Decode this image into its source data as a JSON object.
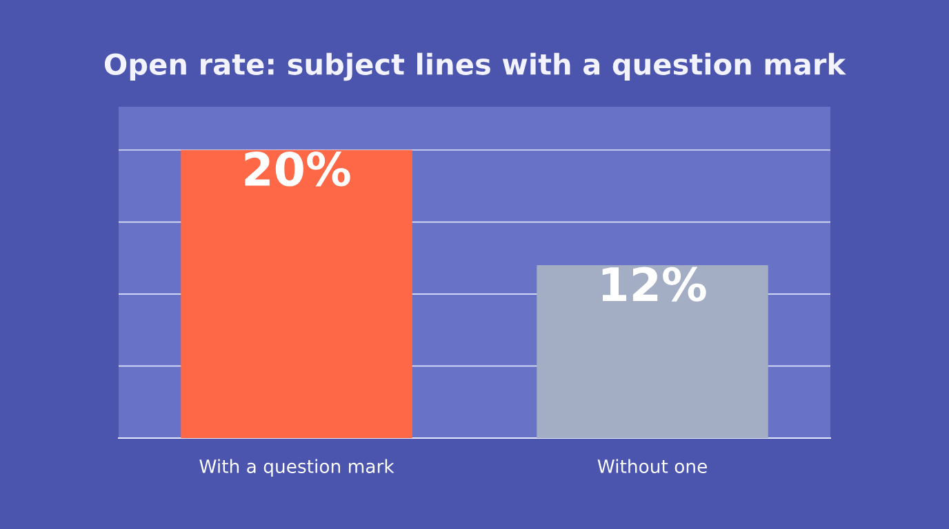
{
  "chart_data": {
    "type": "bar",
    "title": "Open rate: subject lines with a question mark",
    "categories": [
      "With a question mark",
      "Without one"
    ],
    "values": [
      20,
      12
    ],
    "value_labels": [
      "20%",
      "12%"
    ],
    "colors": [
      "#ff6846",
      "#a3aec4"
    ],
    "ylim": [
      0,
      23
    ],
    "yticks": [
      {
        "value": 5,
        "label": null
      },
      {
        "value": 10,
        "label": null
      },
      {
        "value": 15,
        "label": null
      },
      {
        "value": 20,
        "label": null
      }
    ],
    "grid": "y",
    "tick_labels": "x"
  }
}
